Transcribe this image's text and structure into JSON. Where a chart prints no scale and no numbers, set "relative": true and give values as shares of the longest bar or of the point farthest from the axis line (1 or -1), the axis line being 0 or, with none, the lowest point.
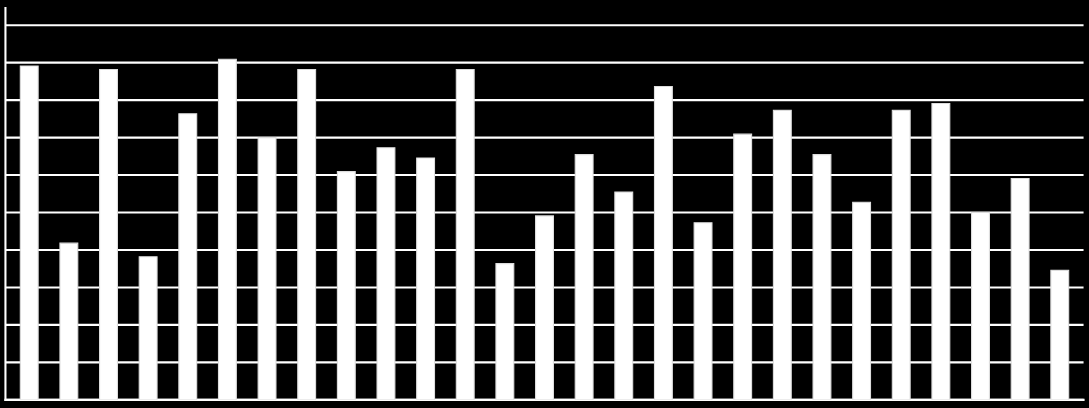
{
  "chart_data": {
    "type": "bar",
    "relative": true,
    "grid": "y",
    "tick_labels": false,
    "categories": [
      null,
      null,
      null,
      null,
      null,
      null,
      null,
      null,
      null,
      null,
      null,
      null,
      null,
      null,
      null,
      null,
      null,
      null,
      null,
      null,
      null,
      null,
      null,
      null,
      null,
      null,
      null
    ],
    "color": "#ffffff",
    "values": [
      0.98,
      0.46,
      0.97,
      0.42,
      0.84,
      1,
      0.77,
      0.97,
      0.67,
      0.74,
      0.71,
      0.97,
      0.4,
      0.54,
      0.72,
      0.61,
      0.92,
      0.52,
      0.78,
      0.85,
      0.72,
      0.58,
      0.85,
      0.87,
      0.55,
      0.65,
      0.38
    ]
  }
}
